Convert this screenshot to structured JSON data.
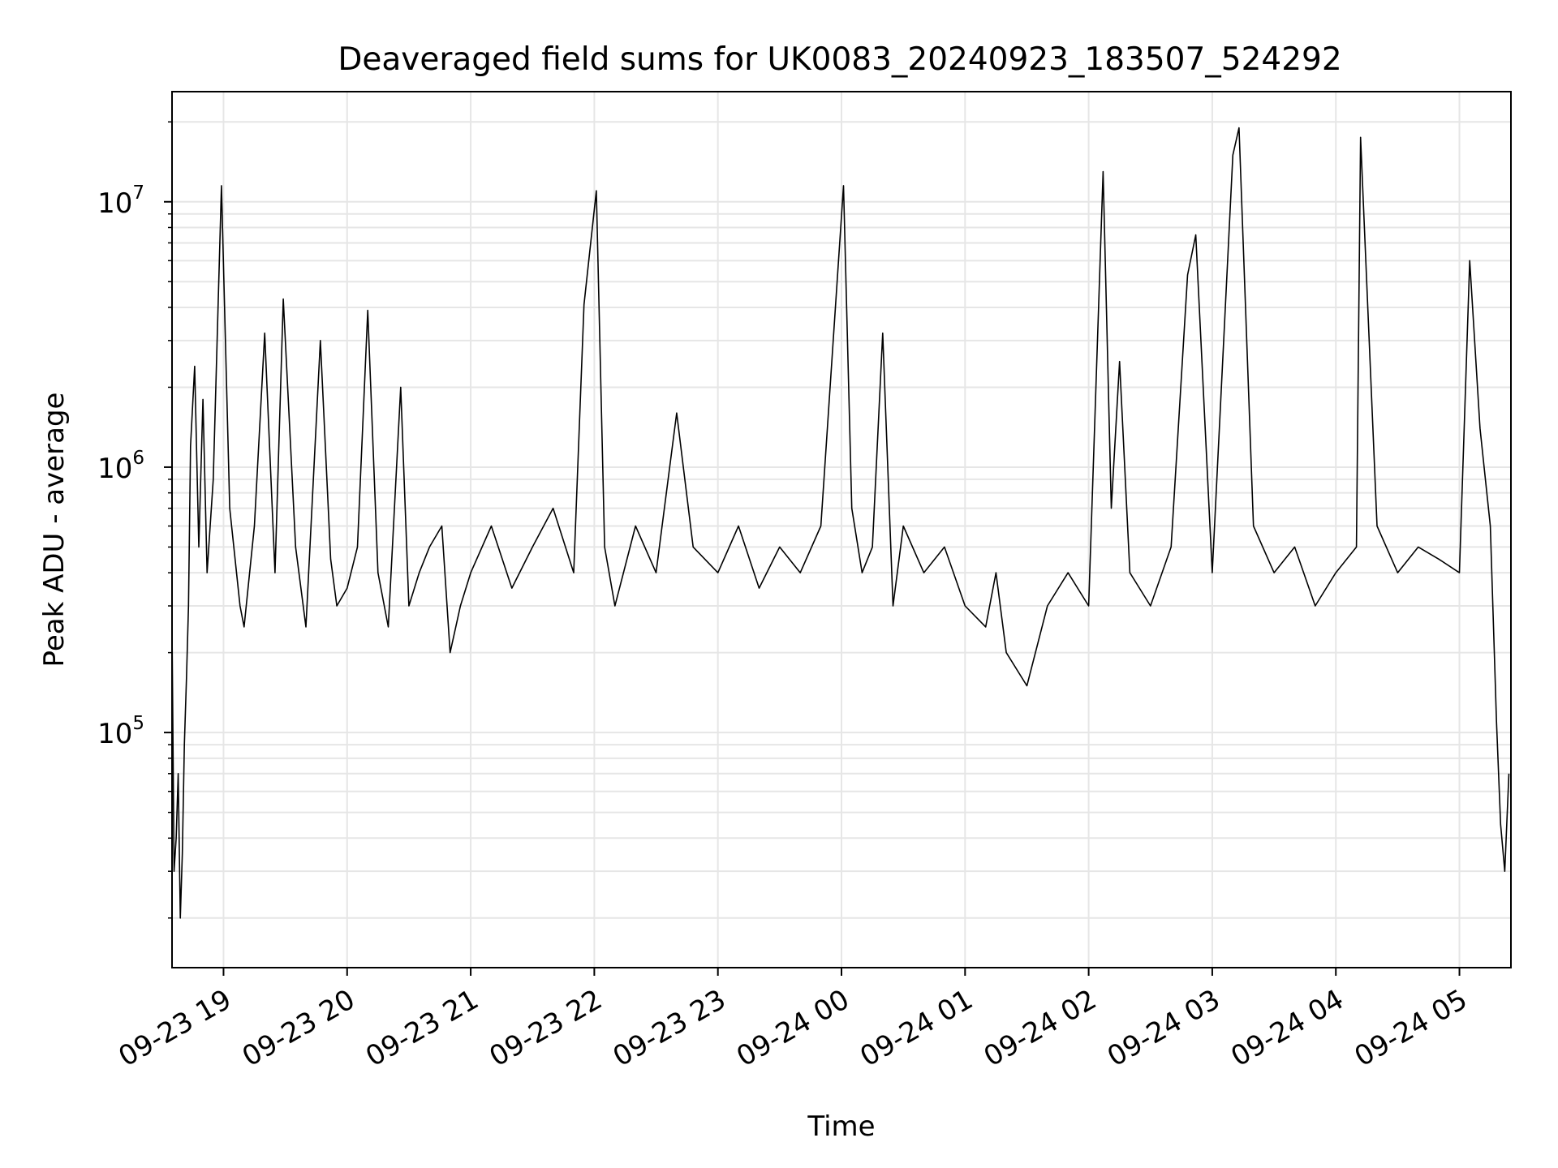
{
  "chart_data": {
    "type": "line",
    "title": "Deaveraged field sums for UK0083_20240923_183507_524292",
    "xlabel": "Time",
    "ylabel": "Peak ADU - average",
    "yscale": "log",
    "ylim": [
      13000,
      26000000
    ],
    "xlim": [
      "2024-09-23 18:35",
      "2024-09-24 05:25"
    ],
    "grid": true,
    "line_color": "#000000",
    "grid_color": "#e6e6e6",
    "x_ticks": [
      {
        "t": "2024-09-23 19:00",
        "label": "09-23 19"
      },
      {
        "t": "2024-09-23 20:00",
        "label": "09-23 20"
      },
      {
        "t": "2024-09-23 21:00",
        "label": "09-23 21"
      },
      {
        "t": "2024-09-23 22:00",
        "label": "09-23 22"
      },
      {
        "t": "2024-09-23 23:00",
        "label": "09-23 23"
      },
      {
        "t": "2024-09-24 00:00",
        "label": "09-24 00"
      },
      {
        "t": "2024-09-24 01:00",
        "label": "09-24 01"
      },
      {
        "t": "2024-09-24 02:00",
        "label": "09-24 02"
      },
      {
        "t": "2024-09-24 03:00",
        "label": "09-24 03"
      },
      {
        "t": "2024-09-24 04:00",
        "label": "09-24 04"
      },
      {
        "t": "2024-09-24 05:00",
        "label": "09-24 05"
      }
    ],
    "y_ticks": [
      {
        "value": 100000,
        "base": "10",
        "exp": "5"
      },
      {
        "value": 1000000,
        "base": "10",
        "exp": "6"
      },
      {
        "value": 10000000,
        "base": "10",
        "exp": "7"
      }
    ],
    "series": [
      {
        "x": [
          "2024-09-23 18:35",
          "2024-09-23 18:36",
          "2024-09-23 18:37",
          "2024-09-23 18:38",
          "2024-09-23 18:39",
          "2024-09-23 18:40",
          "2024-09-23 18:41",
          "2024-09-23 18:42",
          "2024-09-23 18:43",
          "2024-09-23 18:44",
          "2024-09-23 18:46",
          "2024-09-23 18:48",
          "2024-09-23 18:50",
          "2024-09-23 18:52",
          "2024-09-23 18:55",
          "2024-09-23 18:59",
          "2024-09-23 19:03",
          "2024-09-23 19:08",
          "2024-09-23 19:10",
          "2024-09-23 19:15",
          "2024-09-23 19:20",
          "2024-09-23 19:25",
          "2024-09-23 19:29",
          "2024-09-23 19:35",
          "2024-09-23 19:40",
          "2024-09-23 19:47",
          "2024-09-23 19:52",
          "2024-09-23 19:55",
          "2024-09-23 20:00",
          "2024-09-23 20:05",
          "2024-09-23 20:10",
          "2024-09-23 20:15",
          "2024-09-23 20:20",
          "2024-09-23 20:26",
          "2024-09-23 20:30",
          "2024-09-23 20:35",
          "2024-09-23 20:40",
          "2024-09-23 20:46",
          "2024-09-23 20:50",
          "2024-09-23 20:55",
          "2024-09-23 21:00",
          "2024-09-23 21:10",
          "2024-09-23 21:20",
          "2024-09-23 21:30",
          "2024-09-23 21:40",
          "2024-09-23 21:50",
          "2024-09-23 21:55",
          "2024-09-23 22:01",
          "2024-09-23 22:05",
          "2024-09-23 22:10",
          "2024-09-23 22:20",
          "2024-09-23 22:30",
          "2024-09-23 22:40",
          "2024-09-23 22:48",
          "2024-09-23 23:00",
          "2024-09-23 23:10",
          "2024-09-23 23:20",
          "2024-09-23 23:30",
          "2024-09-23 23:40",
          "2024-09-23 23:50",
          "2024-09-24 00:01",
          "2024-09-24 00:05",
          "2024-09-24 00:10",
          "2024-09-24 00:15",
          "2024-09-24 00:20",
          "2024-09-24 00:25",
          "2024-09-24 00:30",
          "2024-09-24 00:40",
          "2024-09-24 00:50",
          "2024-09-24 01:00",
          "2024-09-24 01:10",
          "2024-09-24 01:15",
          "2024-09-24 01:20",
          "2024-09-24 01:30",
          "2024-09-24 01:40",
          "2024-09-24 01:50",
          "2024-09-24 02:00",
          "2024-09-24 02:07",
          "2024-09-24 02:11",
          "2024-09-24 02:15",
          "2024-09-24 02:20",
          "2024-09-24 02:30",
          "2024-09-24 02:40",
          "2024-09-24 02:48",
          "2024-09-24 02:52",
          "2024-09-24 03:00",
          "2024-09-24 03:10",
          "2024-09-24 03:13",
          "2024-09-24 03:20",
          "2024-09-24 03:30",
          "2024-09-24 03:40",
          "2024-09-24 03:50",
          "2024-09-24 04:00",
          "2024-09-24 04:10",
          "2024-09-24 04:12",
          "2024-09-24 04:20",
          "2024-09-24 04:30",
          "2024-09-24 04:40",
          "2024-09-24 04:50",
          "2024-09-24 05:00",
          "2024-09-24 05:05",
          "2024-09-24 05:10",
          "2024-09-24 05:15",
          "2024-09-24 05:18",
          "2024-09-24 05:20",
          "2024-09-24 05:22",
          "2024-09-24 05:24"
        ],
        "y": [
          250000,
          30000,
          40000,
          70000,
          20000,
          35000,
          90000,
          160000,
          300000,
          1200000,
          2400000,
          500000,
          1800000,
          400000,
          900000,
          11500000,
          700000,
          300000,
          250000,
          600000,
          3200000,
          400000,
          4300000,
          500000,
          250000,
          3000000,
          450000,
          300000,
          350000,
          500000,
          3900000,
          400000,
          250000,
          2000000,
          300000,
          400000,
          500000,
          600000,
          200000,
          300000,
          400000,
          600000,
          350000,
          500000,
          700000,
          400000,
          4100000,
          11000000,
          500000,
          300000,
          600000,
          400000,
          1600000,
          500000,
          400000,
          600000,
          350000,
          500000,
          400000,
          600000,
          11500000,
          700000,
          400000,
          500000,
          3200000,
          300000,
          600000,
          400000,
          500000,
          300000,
          250000,
          400000,
          200000,
          150000,
          300000,
          400000,
          300000,
          13000000,
          700000,
          2500000,
          400000,
          300000,
          500000,
          5300000,
          7500000,
          400000,
          15000000,
          19000000,
          600000,
          400000,
          500000,
          300000,
          400000,
          500000,
          17500000,
          600000,
          400000,
          500000,
          450000,
          400000,
          6000000,
          1400000,
          600000,
          110000,
          45000,
          30000,
          70000
        ]
      }
    ]
  }
}
